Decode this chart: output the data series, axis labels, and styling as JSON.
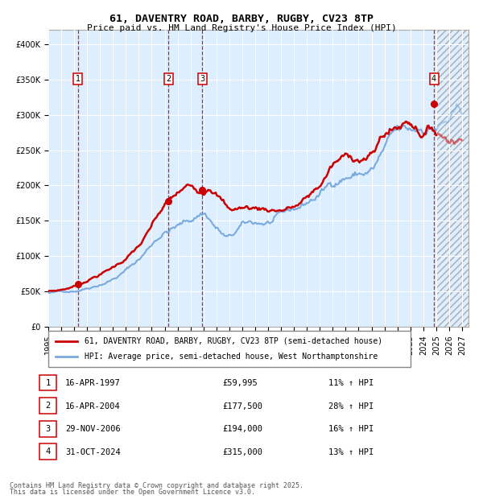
{
  "title": "61, DAVENTRY ROAD, BARBY, RUGBY, CV23 8TP",
  "subtitle": "Price paid vs. HM Land Registry's House Price Index (HPI)",
  "legend_line1": "61, DAVENTRY ROAD, BARBY, RUGBY, CV23 8TP (semi-detached house)",
  "legend_line2": "HPI: Average price, semi-detached house, West Northamptonshire",
  "footer1": "Contains HM Land Registry data © Crown copyright and database right 2025.",
  "footer2": "This data is licensed under the Open Government Licence v3.0.",
  "transactions": [
    {
      "num": 1,
      "date": "16-APR-1997",
      "price": 59995,
      "pct": "11%",
      "dir": "↑",
      "year": 1997.29
    },
    {
      "num": 2,
      "date": "16-APR-2004",
      "price": 177500,
      "pct": "28%",
      "dir": "↑",
      "year": 2004.29
    },
    {
      "num": 3,
      "date": "29-NOV-2006",
      "price": 194000,
      "pct": "16%",
      "dir": "↑",
      "year": 2006.91
    },
    {
      "num": 4,
      "date": "31-OCT-2024",
      "price": 315000,
      "pct": "13%",
      "dir": "↑",
      "year": 2024.83
    }
  ],
  "red_color": "#cc0000",
  "blue_color": "#7aaadd",
  "bg_color": "#ddeeff",
  "grid_color": "#ffffff",
  "ylim": [
    0,
    420000
  ],
  "xlim_start": 1995.0,
  "xlim_end": 2027.5,
  "future_start": 2025.0,
  "yticks": [
    0,
    50000,
    100000,
    150000,
    200000,
    250000,
    300000,
    350000,
    400000
  ],
  "title_fontsize": 9.5,
  "subtitle_fontsize": 8,
  "tick_fontsize": 7,
  "legend_fontsize": 7,
  "table_fontsize": 7.5,
  "footer_fontsize": 6
}
